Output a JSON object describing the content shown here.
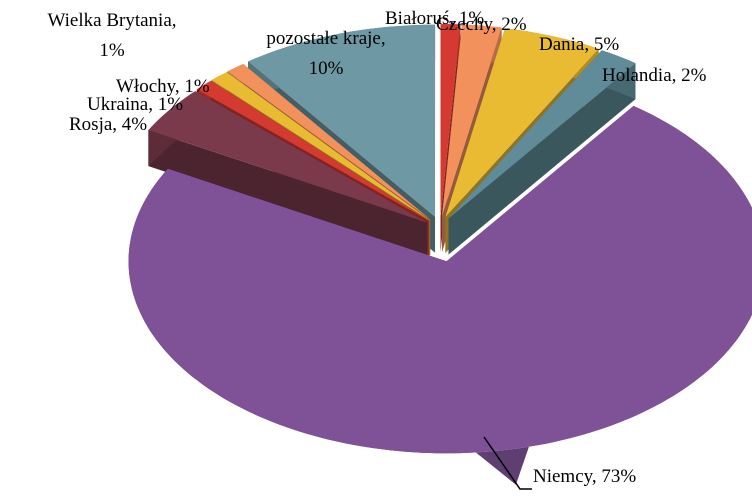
{
  "chart_data": {
    "type": "pie",
    "values": [
      1,
      2,
      5,
      2,
      73,
      4,
      1,
      1,
      1,
      10
    ],
    "value_labels": [
      "Białoruś, 1%",
      "Czechy, 2%",
      "Dania, 5%",
      "Holandia, 2%",
      "Niemcy, 73%",
      "Rosja, 4%",
      "Ukraina, 1%",
      "Włochy, 1%",
      "Wielka Brytania,\n1%",
      "pozostałe kraje,\n10%"
    ],
    "colors": [
      "#d43a32",
      "#f3915d",
      "#e9bb33",
      "#5f8c98",
      "#7f5298",
      "#7b3a4c",
      "#d43a32",
      "#e9bb33",
      "#f3915d",
      "#6e98a3"
    ]
  }
}
